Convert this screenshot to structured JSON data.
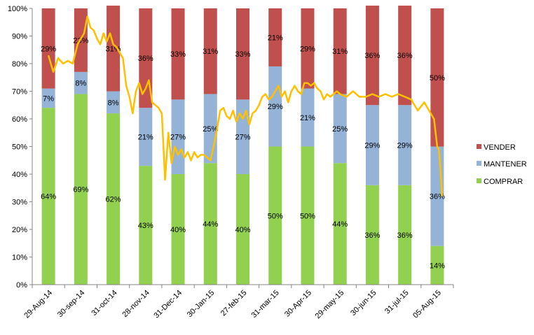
{
  "chart_data": {
    "type": "bar",
    "stacked": true,
    "percent_stacked": true,
    "categories": [
      "29-Aug-14",
      "30-sep-14",
      "31-oct-14",
      "28-nov-14",
      "31-Dec-14",
      "30-Jan-15",
      "27-feb-15",
      "31-mar-15",
      "30-Apr-15",
      "29-may-15",
      "30-jun-15",
      "31-jul-15",
      "05-Aug-15"
    ],
    "series": [
      {
        "name": "COMPRAR",
        "color": "#92D050",
        "values": [
          64,
          69,
          62,
          43,
          40,
          44,
          40,
          50,
          50,
          44,
          36,
          36,
          14
        ],
        "labels": [
          "64%",
          "69%",
          "62%",
          "43%",
          "40%",
          "44%",
          "40%",
          "50%",
          "50%",
          "44%",
          "36%",
          "36%",
          "14%"
        ]
      },
      {
        "name": "MANTENER",
        "color": "#95B3D7",
        "values": [
          7,
          8,
          8,
          21,
          27,
          25,
          27,
          29,
          21,
          25,
          29,
          29,
          36
        ],
        "labels": [
          "7%",
          "8%",
          "8%",
          "21%",
          "27%",
          "25%",
          "27%",
          "29%",
          "21%",
          "25%",
          "29%",
          "29%",
          "36%"
        ]
      },
      {
        "name": "VENDER",
        "color": "#C0504D",
        "values": [
          29,
          23,
          31,
          36,
          33,
          31,
          33,
          21,
          29,
          31,
          36,
          36,
          50
        ],
        "labels": [
          "29%",
          "23%",
          "31%",
          "36%",
          "33%",
          "31%",
          "33%",
          "21%",
          "29%",
          "31%",
          "36%",
          "36%",
          "50%"
        ]
      }
    ],
    "overlay_line": {
      "color": "#FFC000",
      "x": [
        0.0,
        0.15,
        0.3,
        0.45,
        0.6,
        0.75,
        0.9,
        1.0,
        1.1,
        1.2,
        1.3,
        1.4,
        1.5,
        1.6,
        1.7,
        1.8,
        1.9,
        2.0,
        2.1,
        2.2,
        2.3,
        2.4,
        2.5,
        2.6,
        2.7,
        2.8,
        2.9,
        3.0,
        3.1,
        3.2,
        3.3,
        3.4,
        3.5,
        3.6,
        3.7,
        3.8,
        3.9,
        4.0,
        4.1,
        4.2,
        4.3,
        4.4,
        4.5,
        4.6,
        4.7,
        4.8,
        4.9,
        5.0,
        5.1,
        5.2,
        5.3,
        5.4,
        5.5,
        5.6,
        5.7,
        5.8,
        5.9,
        6.0,
        6.1,
        6.2,
        6.3,
        6.4,
        6.5,
        6.6,
        6.7,
        6.8,
        6.9,
        7.0,
        7.1,
        7.2,
        7.3,
        7.4,
        7.5,
        7.6,
        7.7,
        7.8,
        7.9,
        8.0,
        8.1,
        8.2,
        8.3,
        8.4,
        8.5,
        8.6,
        8.7,
        8.8,
        8.9,
        9.0,
        9.2,
        9.4,
        9.6,
        9.8,
        10.0,
        10.2,
        10.4,
        10.6,
        10.8,
        11.0,
        11.2,
        11.4,
        11.6,
        11.8,
        11.9,
        12.0,
        12.05,
        12.1,
        12.15
      ],
      "y": [
        83,
        77,
        82,
        80,
        81,
        80,
        87,
        89,
        91,
        97,
        93,
        92,
        89,
        87,
        91,
        88,
        91,
        87,
        86,
        84,
        82,
        72,
        68,
        62,
        70,
        73,
        69,
        71,
        74,
        66,
        65,
        64,
        62,
        38,
        55,
        44,
        50,
        47,
        49,
        46,
        48,
        45,
        48,
        46,
        47,
        47,
        46,
        45,
        50,
        56,
        63,
        64,
        61,
        60,
        63,
        59,
        62,
        60,
        63,
        58,
        62,
        63,
        65,
        68,
        69,
        67,
        68,
        70,
        72,
        68,
        70,
        66,
        70,
        72,
        70,
        69,
        73,
        73,
        72,
        73,
        71,
        70,
        67,
        69,
        68,
        69,
        70,
        69,
        68,
        70,
        68,
        68,
        69,
        68,
        69,
        68,
        69,
        68,
        67,
        63,
        66,
        62,
        60,
        50,
        49,
        42,
        32
      ]
    },
    "y_ticks": [
      "0%",
      "10%",
      "20%",
      "30%",
      "40%",
      "50%",
      "60%",
      "70%",
      "80%",
      "90%",
      "100%"
    ],
    "ylim": [
      0,
      100
    ],
    "legend": [
      "VENDER",
      "MANTENER",
      "COMPRAR"
    ],
    "legend_position": "right",
    "grid": false
  }
}
